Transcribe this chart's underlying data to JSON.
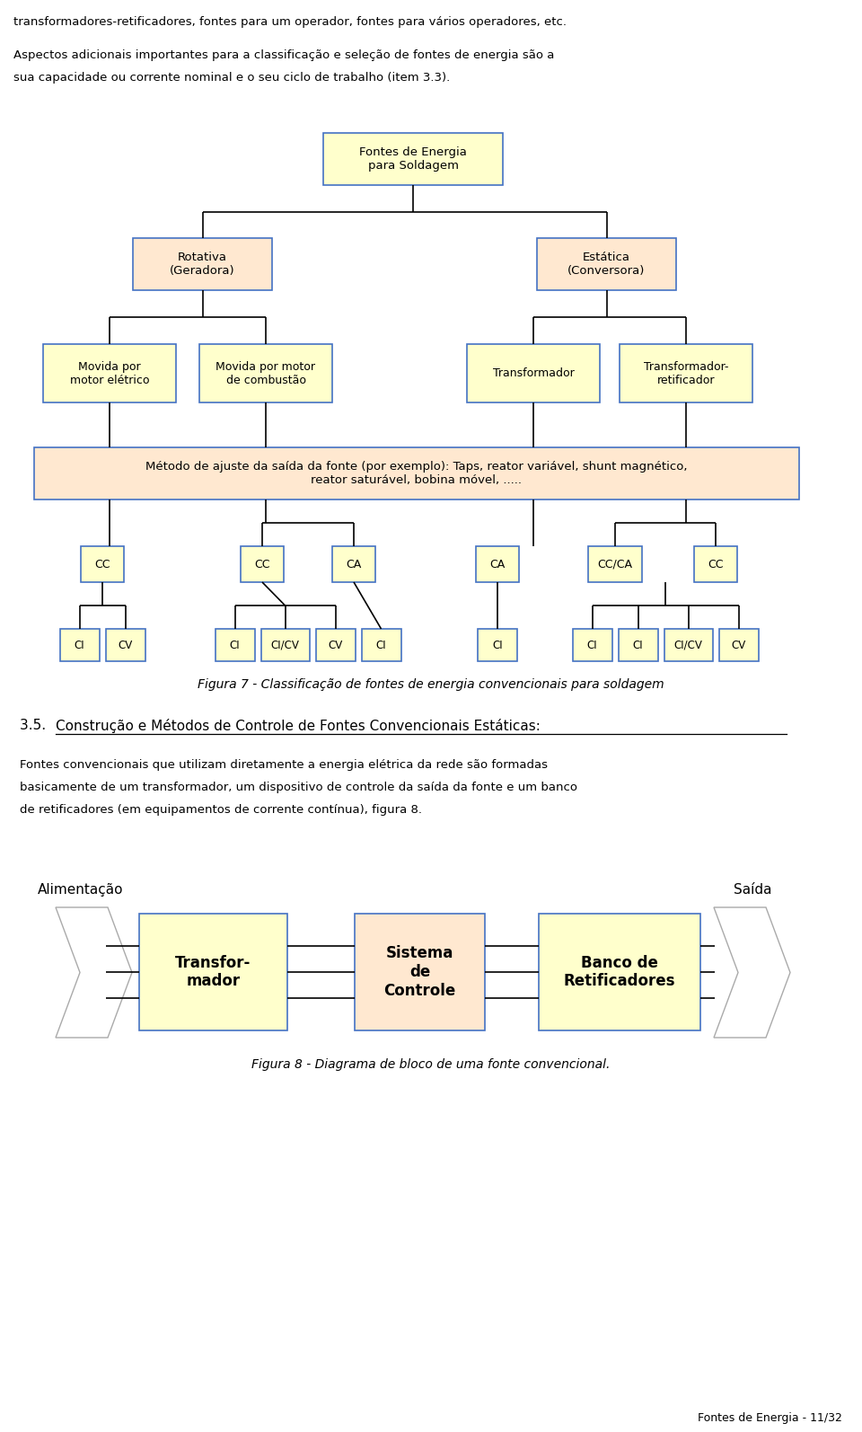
{
  "bg_color": "#ffffff",
  "text_color": "#000000",
  "box_yellow": "#ffffcc",
  "box_peach": "#ffe8d0",
  "border_blue": "#4472c4",
  "intro_text1": "transformadores-retificadores, fontes para um operador, fontes para vários operadores, etc.",
  "intro_text2a": "Aspectos adicionais importantes para a classificação e seleção de fontes de energia são a",
  "intro_text2b": "sua capacidade ou corrente nominal e o seu ciclo de trabalho (item 3.3).",
  "fig7_caption": "Figura 7 - Classificação de fontes de energia convencionais para soldagem",
  "section_prefix": "3.5. ",
  "section_underline": "Construção e Métodos de Controle de Fontes Convencionais Estáticas",
  "section_colon": ":",
  "body_text_lines": [
    "Fontes convencionais que utilizam diretamente a energia elétrica da rede são formadas",
    "basicamente de um transformador, um dispositivo de controle da saída da fonte e um banco",
    "de retificadores (em equipamentos de corrente contínua), figura 8."
  ],
  "fig8_caption": "Figura 8 - Diagrama de bloco de uma fonte convencional.",
  "footer": "Fontes de Energia - 11/32",
  "root_label": "Fontes de Energia\npara Soldagem",
  "l1_left": "Rotativa\n(Geradora)",
  "l1_right": "Estática\n(Conversora)",
  "l2_1": "Movida por\nmotor elétrico",
  "l2_2": "Movida por motor\nde combustão",
  "l2_3": "Transformador",
  "l2_4": "Transformador-\nretificador",
  "wide_box": "Método de ajuste da saída da fonte (por exemplo): Taps, reator variável, shunt magnético,\nreator saturável, bobina móvel, .....",
  "fig8_alimentacao": "Alimentação",
  "fig8_saida": "Saída",
  "fig8_box1": "Transfor-\nmador",
  "fig8_box2": "Sistema\nde\nControle",
  "fig8_box3": "Banco de\nRetificadores"
}
